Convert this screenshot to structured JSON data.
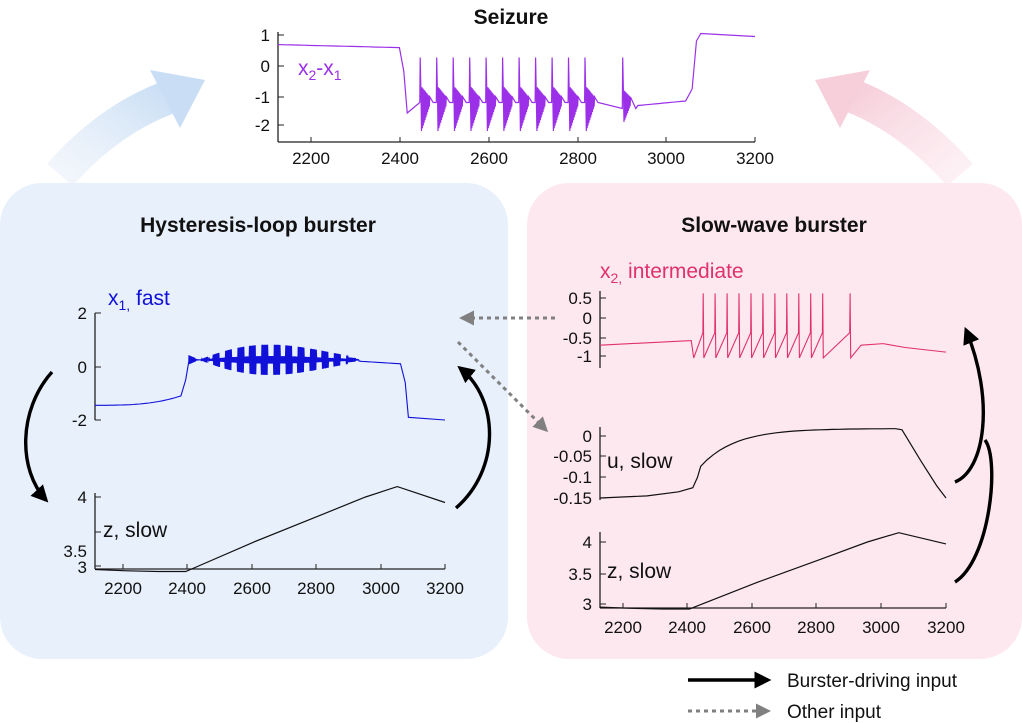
{
  "colors": {
    "seizure_trace": "#9b30e8",
    "fast_trace": "#1010d8",
    "intermediate_trace": "#e0306e",
    "slow_trace": "#111111",
    "left_panel_bg": "#e8f0fb",
    "right_panel_bg": "#fde8ef",
    "left_arrow": "#cfe1f6",
    "right_arrow": "#f8d4df",
    "driving_arrow": "#000000",
    "other_arrow": "#808080"
  },
  "seizure": {
    "title": "Seizure",
    "trace_label": "x2-x1",
    "yticks": [
      "1",
      "0",
      "-1",
      "-2"
    ],
    "xticks": [
      "2200",
      "2400",
      "2600",
      "2800",
      "3000",
      "3200"
    ]
  },
  "hysteresis": {
    "title": "Hysteresis-loop burster",
    "fast_label": "x1, fast",
    "fast_yticks": [
      "2",
      "0",
      "-2"
    ],
    "slow_label": "z, slow",
    "slow_yticks": [
      "4",
      "3.5",
      "3"
    ],
    "xticks": [
      "2200",
      "2400",
      "2600",
      "2800",
      "3000",
      "3200"
    ]
  },
  "slowwave": {
    "title": "Slow-wave burster",
    "intermediate_label": "x2, intermediate",
    "intermediate_yticks": [
      "0.5",
      "0",
      "-0.5",
      "-1"
    ],
    "u_label": "u, slow",
    "u_yticks": [
      "0",
      "-0.05",
      "-0.1",
      "-0.15"
    ],
    "z_label": "z, slow",
    "z_yticks": [
      "4",
      "3.5",
      "3"
    ],
    "xticks": [
      "2200",
      "2400",
      "2600",
      "2800",
      "3000",
      "3200"
    ]
  },
  "legend": {
    "driving": "Burster-driving input",
    "other": "Other input"
  }
}
